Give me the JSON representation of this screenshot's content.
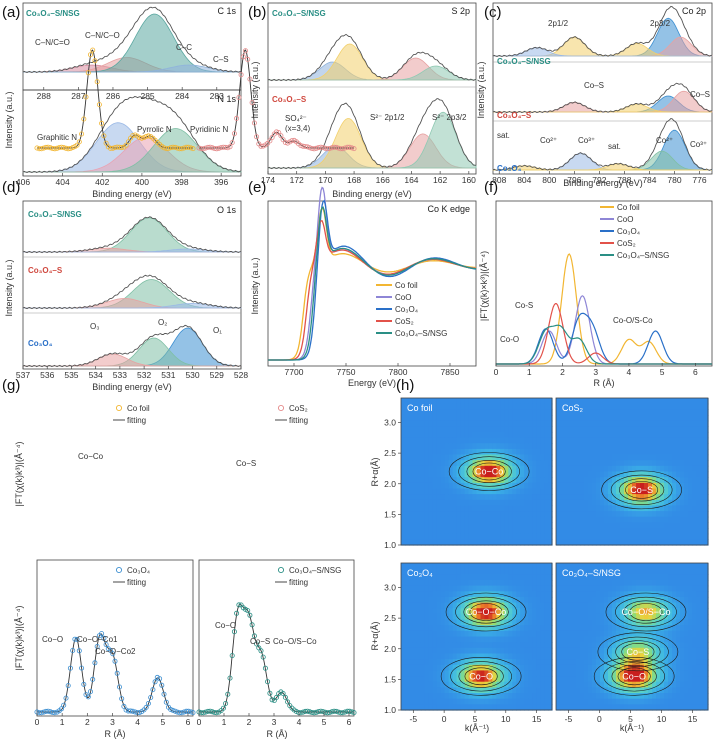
{
  "chart_data": [
    {
      "panel": "a",
      "type": "line",
      "title_top": "C 1s",
      "title_bottom": "N 1s",
      "xlabel": "Binding energy (eV)",
      "ylabel": "Intensity (a.u.)",
      "label_top": "Co₃O₄–S/NSG",
      "x_ticks_top": [
        "288",
        "287",
        "286",
        "285",
        "284",
        "283"
      ],
      "x_ticks_bottom": [
        "406",
        "404",
        "402",
        "400",
        "398",
        "396"
      ],
      "xlim_top": [
        288.6,
        282.3
      ],
      "xlim_bottom": [
        406,
        395
      ],
      "annotations_top": [
        "C–N/C=O",
        "C–N/C–O",
        "C–C",
        "C–S"
      ],
      "annotations_bottom": [
        "Graphitic N",
        "Pyrrolic N",
        "Pyridinic N"
      ],
      "peaks_top": [
        {
          "name": "C–N/C=O",
          "center": 286.6,
          "height": 0.12,
          "color": "#d98ca0"
        },
        {
          "name": "C–N/C–O",
          "center": 285.6,
          "height": 0.25,
          "color": "#e7a2a2"
        },
        {
          "name": "C–C",
          "center": 284.8,
          "height": 1.0,
          "color": "#5aa7a0"
        },
        {
          "name": "C–S",
          "center": 283.8,
          "height": 0.12,
          "color": "#8fb3dc"
        }
      ],
      "peaks_bottom": [
        {
          "name": "Graphitic N",
          "center": 401.2,
          "height": 0.85,
          "color": "#9bb9e6"
        },
        {
          "name": "Pyrrolic N",
          "center": 399.8,
          "height": 0.6,
          "color": "#e9a3b3"
        },
        {
          "name": "Pyridinic N",
          "center": 398.3,
          "height": 0.75,
          "color": "#7fbfa5"
        }
      ]
    },
    {
      "panel": "b",
      "type": "line",
      "title": "S 2p",
      "xlabel": "Binding energy (eV)",
      "ylabel": "Intensity (a.u.)",
      "x_ticks": [
        "174",
        "172",
        "170",
        "168",
        "166",
        "164",
        "162",
        "160"
      ],
      "xlim": [
        174,
        159.5
      ],
      "series": [
        {
          "name": "Co₃O₄–S/NSG",
          "color": "#2a8f85",
          "peaks": [
            {
              "center": 169.5,
              "height": 0.45,
              "color": "#8fb3dc"
            },
            {
              "center": 168.3,
              "height": 0.9,
              "color": "#f2d06b"
            },
            {
              "center": 163.7,
              "height": 0.55,
              "color": "#e7a2a2"
            },
            {
              "center": 162.3,
              "height": 0.35,
              "color": "#8fc9b3"
            }
          ]
        },
        {
          "name": "Co₃O₄–S",
          "color": "#d0493f",
          "peaks": [
            {
              "center": 169.3,
              "height": 0.35,
              "color": "#8fb3dc"
            },
            {
              "center": 168.4,
              "height": 0.8,
              "color": "#f2d06b"
            },
            {
              "center": 163.2,
              "height": 0.55,
              "color": "#e7a2a2"
            },
            {
              "center": 161.8,
              "height": 0.9,
              "color": "#8fc9b3"
            }
          ]
        }
      ],
      "annotations": [
        "SO₄²⁻",
        "(x=3,4)",
        "S²⁻ 2p1/2",
        "S²⁻ 2p3/2"
      ]
    },
    {
      "panel": "c",
      "type": "line",
      "title": "Co 2p",
      "xlabel": "Binding energy (eV)",
      "ylabel": "Intensity (a.u.)",
      "x_ticks": [
        "808",
        "804",
        "800",
        "796",
        "792",
        "788",
        "784",
        "780",
        "776"
      ],
      "xlim": [
        809,
        774
      ],
      "series": [
        {
          "name": "Co₃O₄–S/NSG",
          "color": "#2a8f85"
        },
        {
          "name": "Co₃O₄–S",
          "color": "#d0493f"
        },
        {
          "name": "Co₃O₄",
          "color": "#2a70c8"
        }
      ],
      "annotations": [
        "2p1/2",
        "2p3/2",
        "Co–S",
        "Co–S",
        "sat.",
        "sat.",
        "Co²⁺",
        "Co³⁺",
        "Co²⁺",
        "Co³⁺"
      ]
    },
    {
      "panel": "d",
      "type": "line",
      "title": "O 1s",
      "xlabel": "Binding energy (eV)",
      "ylabel": "Intensity (a.u.)",
      "x_ticks": [
        "537",
        "536",
        "535",
        "534",
        "533",
        "532",
        "531",
        "530",
        "529",
        "528"
      ],
      "xlim": [
        537,
        528
      ],
      "series": [
        {
          "name": "Co₃O₄–S/NSG",
          "color": "#2a8f85"
        },
        {
          "name": "Co₃O₄–S",
          "color": "#d0493f"
        },
        {
          "name": "Co₃O₄",
          "color": "#2a70c8"
        }
      ],
      "annotations": [
        "O₃",
        "O₂",
        "O₁"
      ]
    },
    {
      "panel": "e",
      "type": "line",
      "title": "Co K edge",
      "xlabel": "Energy (eV)",
      "ylabel": "Intensity (a.u.)",
      "x_ticks": [
        "7700",
        "7750",
        "7800",
        "7850"
      ],
      "xlim": [
        7675,
        7875
      ],
      "series": [
        {
          "name": "Co foil",
          "color": "#f2b632"
        },
        {
          "name": "CoO",
          "color": "#8e86d6"
        },
        {
          "name": "Co₃O₄",
          "color": "#2a70c8"
        },
        {
          "name": "CoS₂",
          "color": "#e2524a"
        },
        {
          "name": "Co₃O₄–S/NSG",
          "color": "#2a8f85"
        }
      ]
    },
    {
      "panel": "f",
      "type": "line",
      "xlabel": "R (Å)",
      "ylabel": "|FT(χ(k)×k³)|(Å⁻⁴)",
      "x_ticks": [
        "0",
        "1",
        "2",
        "3",
        "4",
        "5",
        "6"
      ],
      "xlim": [
        0,
        6.5
      ],
      "series": [
        {
          "name": "Co foil",
          "color": "#f2b632",
          "peaks": [
            {
              "r": 2.2,
              "h": 1.0
            },
            {
              "r": 4.0,
              "h": 0.22
            },
            {
              "r": 4.6,
              "h": 0.2
            }
          ]
        },
        {
          "name": "CoO",
          "color": "#8e86d6",
          "peaks": [
            {
              "r": 1.6,
              "h": 0.3
            },
            {
              "r": 2.6,
              "h": 0.62
            }
          ]
        },
        {
          "name": "Co₃O₄",
          "color": "#2a70c8",
          "peaks": [
            {
              "r": 1.5,
              "h": 0.32
            },
            {
              "r": 2.5,
              "h": 0.38
            },
            {
              "r": 2.9,
              "h": 0.3
            },
            {
              "r": 4.8,
              "h": 0.3
            }
          ]
        },
        {
          "name": "CoS₂",
          "color": "#e2524a",
          "peaks": [
            {
              "r": 1.8,
              "h": 0.55
            },
            {
              "r": 3.0,
              "h": 0.1
            }
          ]
        },
        {
          "name": "Co₃O₄–S/NSG",
          "color": "#2a8f85",
          "peaks": [
            {
              "r": 1.5,
              "h": 0.28
            },
            {
              "r": 1.95,
              "h": 0.3
            },
            {
              "r": 2.5,
              "h": 0.22
            }
          ]
        }
      ],
      "annotations": [
        "Co-S",
        "Co-O",
        "Co-O/S-Co"
      ]
    },
    {
      "panel": "g",
      "type": "line",
      "xlabel": "R (Å)",
      "ylabel": "|FT(χ(k)k³)|(Å⁻⁴)",
      "x_ticks": [
        "0",
        "1",
        "2",
        "3",
        "4",
        "5",
        "6"
      ],
      "xlim": [
        0,
        6.2
      ],
      "subplots": [
        {
          "name": "Co foil",
          "fit_label": "fitting",
          "color": "#f2b632",
          "annotations": [
            "Co−Co"
          ],
          "peaks": [
            {
              "r": 2.2,
              "h": 1.0
            },
            {
              "r": 3.9,
              "h": 0.13
            },
            {
              "r": 4.5,
              "h": 0.12
            }
          ]
        },
        {
          "name": "CoS₂",
          "fit_label": "fitting",
          "color": "#e58a8a",
          "annotations": [
            "Co−S"
          ],
          "peaks": [
            {
              "r": 1.85,
              "h": 1.0
            },
            {
              "r": 3.1,
              "h": 0.16
            },
            {
              "r": 3.8,
              "h": 0.07
            }
          ]
        },
        {
          "name": "Co₃O₄",
          "fit_label": "fitting",
          "color": "#3d8fd1",
          "annotations": [
            "Co−O",
            "Co−O−Co1",
            "Co−O−Co2"
          ],
          "peaks": [
            {
              "r": 1.55,
              "h": 0.75
            },
            {
              "r": 2.5,
              "h": 0.75
            },
            {
              "r": 3.0,
              "h": 0.55
            },
            {
              "r": 4.8,
              "h": 0.35
            }
          ]
        },
        {
          "name": "Co₃O₄–S/NSG",
          "fit_label": "fitting",
          "color": "#2a8f85",
          "annotations": [
            "Co−O",
            "Co−S",
            "Co−O/S−Co"
          ],
          "peaks": [
            {
              "r": 1.55,
              "h": 0.95
            },
            {
              "r": 2.0,
              "h": 0.85
            },
            {
              "r": 2.5,
              "h": 0.55
            },
            {
              "r": 3.3,
              "h": 0.2
            }
          ]
        }
      ]
    },
    {
      "panel": "h",
      "type": "heatmap",
      "xlabel": "k(Å⁻¹)",
      "ylabel": "R+α(Å)",
      "x_ticks": [
        "-5",
        "0",
        "5",
        "10",
        "15"
      ],
      "y_ticks": [
        "1.0",
        "1.5",
        "2.0",
        "2.5",
        "3.0"
      ],
      "xlim": [
        -7,
        17.5
      ],
      "ylim": [
        1.0,
        3.4
      ],
      "subplots": [
        {
          "name": "Co foil",
          "blobs": [
            {
              "k": 7.3,
              "r": 2.2,
              "a": 1.0,
              "label": "Co−Co"
            }
          ]
        },
        {
          "name": "CoS₂",
          "blobs": [
            {
              "k": 6.8,
              "r": 1.9,
              "a": 1.0,
              "label": "Co−S"
            }
          ]
        },
        {
          "name": "Co₃O₄",
          "blobs": [
            {
              "k": 6.8,
              "r": 2.6,
              "a": 1.0,
              "label": "Co−O−Co"
            },
            {
              "k": 6.0,
              "r": 1.55,
              "a": 0.95,
              "label": "Co−O"
            }
          ]
        },
        {
          "name": "Co₃O₄–S/NSG",
          "blobs": [
            {
              "k": 7.5,
              "r": 2.6,
              "a": 0.75,
              "label": "Co−O/S−Co"
            },
            {
              "k": 6.2,
              "r": 1.95,
              "a": 0.6,
              "label": "Co−S"
            },
            {
              "k": 5.6,
              "r": 1.55,
              "a": 1.0,
              "label": "Co−O"
            }
          ]
        }
      ]
    }
  ],
  "panel_labels": [
    "(a)",
    "(b)",
    "(c)",
    "(d)",
    "(e)",
    "(f)",
    "(g)",
    "(h)"
  ],
  "text": {
    "a_sample": "Co₃O₄–S/NSG",
    "a_c1s": "C 1s",
    "a_n1s": "N 1s",
    "a_cnco": "C–N/C=O",
    "a_cnco2": "C–N/C–O",
    "a_cc": "C–C",
    "a_cs": "C–S",
    "a_graphitic": "Graphitic N",
    "a_pyrrolic": "Pyrrolic N",
    "a_pyridinic": "Pyridinic N",
    "b_s1": "Co₃O₄–S/NSG",
    "b_s2": "Co₃O₄–S",
    "b_title": "S 2p",
    "b_so4": "SO₄²⁻",
    "b_x": "(x=3,4)",
    "b_s12": "S²⁻ 2p1/2",
    "b_s32": "S²⁻ 2p3/2",
    "c_title": "Co 2p",
    "c_s1": "Co₃O₄–S/NSG",
    "c_s2": "Co₃O₄–S",
    "c_s3": "Co₃O₄",
    "c_2p12": "2p1/2",
    "c_2p32": "2p3/2",
    "c_cos": "Co–S",
    "c_cos2": "Co–S",
    "c_sat1": "sat.",
    "c_sat2": "sat.",
    "c_co2a": "Co²⁺",
    "c_co3a": "Co³⁺",
    "c_co2b": "Co²⁺",
    "c_co3b": "Co³⁺",
    "d_title": "O 1s",
    "d_s1": "Co₃O₄–S/NSG",
    "d_s2": "Co₃O₄–S",
    "d_s3": "Co₃O₄",
    "d_o3": "O₃",
    "d_o2": "O₂",
    "d_o1": "O₁",
    "e_title": "Co K edge",
    "f_cos": "Co-S",
    "f_coo": "Co-O",
    "f_coos": "Co-O/S-Co",
    "xl_be": "Binding energy (eV)",
    "xl_e": "Energy (eV)",
    "xl_r": "R (Å)",
    "xl_k": "k(Å⁻¹)",
    "yl_int": "Intensity (a.u.)",
    "yl_ft": "|FT(χ(k)×k³)|(Å⁻⁴)",
    "yl_ft2": "|FT(χ(k)k³)|(Å⁻⁴)",
    "yl_ra": "R+α(Å)"
  }
}
